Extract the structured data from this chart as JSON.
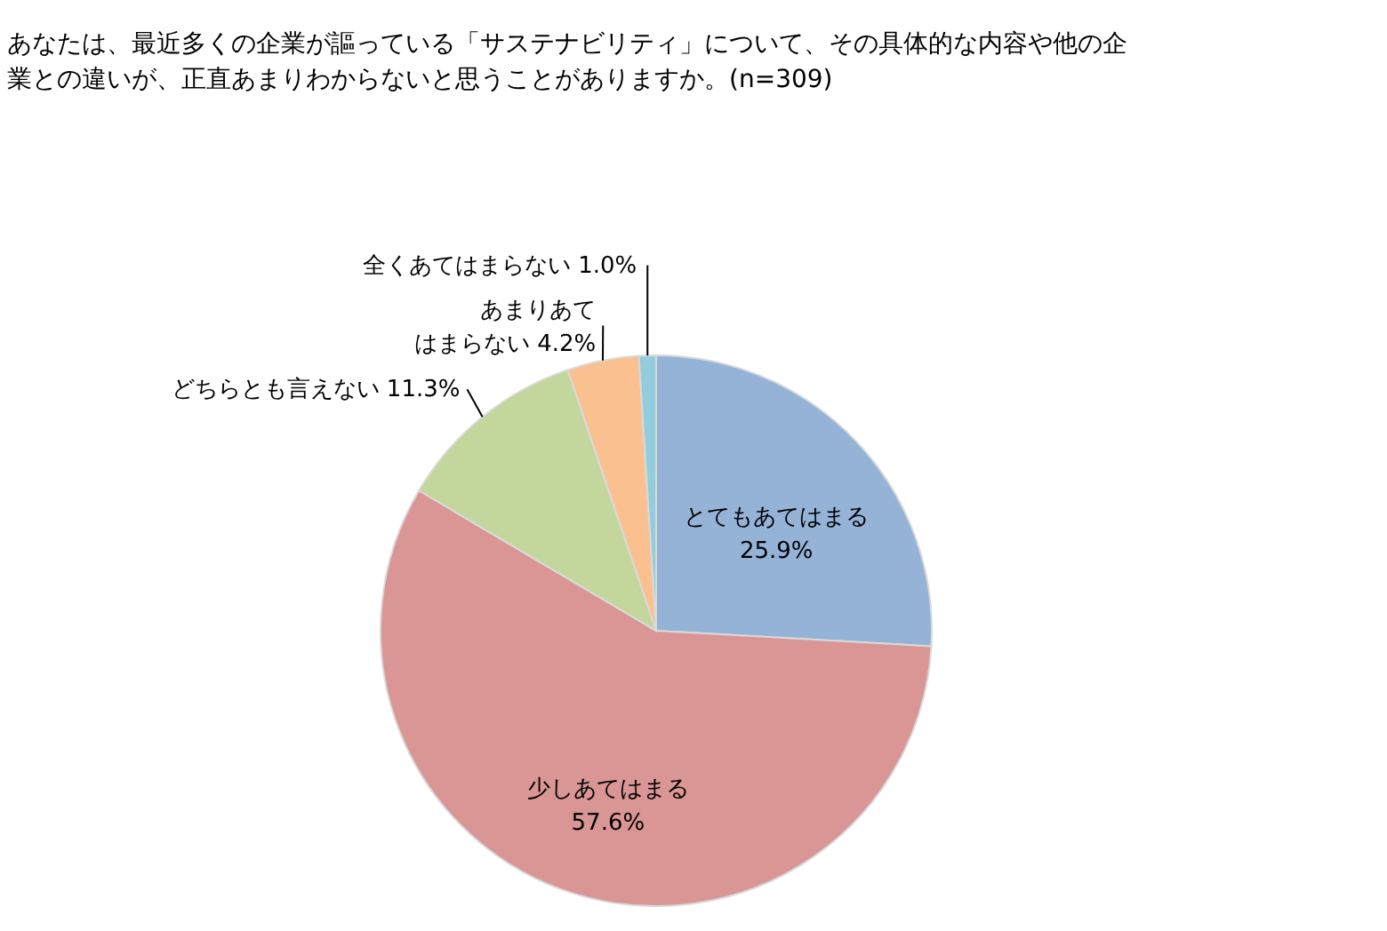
{
  "chart_data": {
    "type": "pie",
    "title": "あなたは、最近多くの企業が謳っている「サステナビリティ」について、その具体的な内容や他の企業との違いが、正直あまりわからないと思うことがありますか。(n=309)",
    "categories": [
      "とてもあてはまる",
      "少しあてはまる",
      "どちらとも言えない",
      "あまりあてはまらない",
      "全くあてはまらない"
    ],
    "values": [
      25.9,
      57.6,
      11.3,
      4.2,
      1.0
    ],
    "colors": [
      "#95b3d7",
      "#d99694",
      "#c3d69b",
      "#fac090",
      "#93cddd"
    ],
    "value_labels": [
      "25.9%",
      "57.6%",
      "11.3%",
      "4.2%",
      "1.0%"
    ],
    "legend": false
  }
}
